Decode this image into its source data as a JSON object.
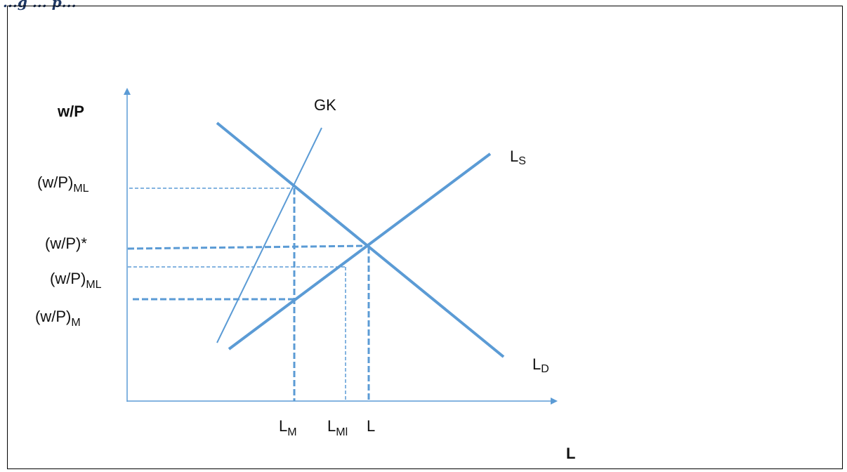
{
  "caption": "...g ... p...",
  "diagram": {
    "y_axis_label": "w/P",
    "x_axis_label": "L",
    "curves": {
      "gk": "GK",
      "supply": {
        "main": "L",
        "sub": "S"
      },
      "demand": {
        "main": "L",
        "sub": "D"
      }
    },
    "y_labels": {
      "ml_high": {
        "main": "(w/P)",
        "sub": "ML"
      },
      "star": {
        "main": "(w/P)*",
        "sub": ""
      },
      "ml_low": {
        "main": "(w/P)",
        "sub": "ML"
      },
      "m": {
        "main": "(w/P)",
        "sub": "M"
      }
    },
    "x_labels": {
      "lm": {
        "main": "L",
        "sub": "M"
      },
      "lml": {
        "main": "L",
        "sub": "Ml"
      },
      "l": {
        "main": "L",
        "sub": ""
      }
    },
    "colors": {
      "line": "#5b9bd5",
      "text": "#111111"
    }
  }
}
